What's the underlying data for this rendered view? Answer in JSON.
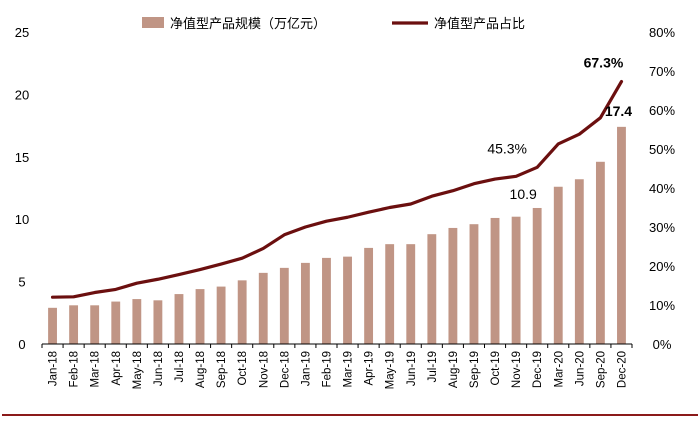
{
  "chart_data": {
    "type": "bar",
    "categories": [
      "Jan-18",
      "Feb-18",
      "Mar-18",
      "Apr-18",
      "May-18",
      "Jun-18",
      "Jul-18",
      "Aug-18",
      "Sep-18",
      "Oct-18",
      "Nov-18",
      "Dec-18",
      "Jan-19",
      "Feb-19",
      "Mar-19",
      "Apr-19",
      "May-19",
      "Jun-19",
      "Jul-19",
      "Aug-19",
      "Sep-19",
      "Oct-19",
      "Nov-19",
      "Dec-19",
      "Mar-20",
      "Jun-20",
      "Sep-20",
      "Dec-20"
    ],
    "series": [
      {
        "name": "净值型产品规模（万亿元）",
        "type": "bar",
        "axis": "left",
        "color": "#c09585",
        "values": [
          2.9,
          3.1,
          3.1,
          3.4,
          3.6,
          3.5,
          4.0,
          4.4,
          4.6,
          5.1,
          5.7,
          6.1,
          6.5,
          6.9,
          7.0,
          7.7,
          8.0,
          8.0,
          8.8,
          9.3,
          9.6,
          10.1,
          10.2,
          10.9,
          12.6,
          13.2,
          14.6,
          17.4
        ]
      },
      {
        "name": "净值型产品占比",
        "type": "line",
        "axis": "right",
        "color": "#6b0f0f",
        "values": [
          12.0,
          12.1,
          13.2,
          14.0,
          15.6,
          16.6,
          17.8,
          19.1,
          20.5,
          22.0,
          24.5,
          28.0,
          30.0,
          31.5,
          32.5,
          33.8,
          35.0,
          35.9,
          37.9,
          39.3,
          41.1,
          42.3,
          43.0,
          45.3,
          51.3,
          53.8,
          58.0,
          67.3
        ]
      }
    ],
    "y_left": {
      "min": 0,
      "max": 25,
      "ticks": [
        "0",
        "5",
        "10",
        "15",
        "20",
        "25"
      ]
    },
    "y_right": {
      "min": 0,
      "max": 80,
      "ticks": [
        "0%",
        "10%",
        "20%",
        "30%",
        "40%",
        "50%",
        "60%",
        "70%",
        "80%"
      ]
    },
    "annotations": [
      {
        "label": "67.3%",
        "series": 1,
        "index": 27,
        "bold": true
      },
      {
        "label": "17.4",
        "series": 0,
        "index": 27,
        "bold": true
      },
      {
        "label": "45.3%",
        "series": 1,
        "index": 23,
        "bold": false
      },
      {
        "label": "10.9",
        "series": 0,
        "index": 23,
        "bold": false
      }
    ],
    "grid": false,
    "legend_position": "top",
    "footer_rule_color": "#8b1a1a"
  }
}
